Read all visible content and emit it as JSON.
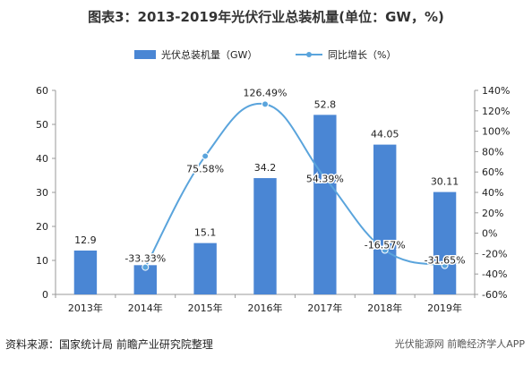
{
  "title": "图表3：2013-2019年光伏行业总装机量(单位：GW，%)",
  "footer": {
    "source": "资料来源：国家统计局 前瞻产业研究院整理",
    "watermark": "光伏能源网 前瞻经济学人APP"
  },
  "colors": {
    "bar": "#4a86d4",
    "line": "#5aa4dc",
    "axis": "#999999",
    "text": "#222222"
  },
  "chart_data": {
    "type": "bar+line",
    "categories": [
      "2013年",
      "2014年",
      "2015年",
      "2016年",
      "2017年",
      "2018年",
      "2019年"
    ],
    "series": [
      {
        "name": "光伏总装机量（GW）",
        "type": "bar",
        "axis": "left",
        "values": [
          12.9,
          8.6,
          15.1,
          34.2,
          52.8,
          44.05,
          30.11
        ],
        "labels": [
          "12.9",
          "",
          "15.1",
          "34.2",
          "52.8",
          "44.05",
          "30.11"
        ]
      },
      {
        "name": "同比增长（%）",
        "type": "line",
        "axis": "right",
        "values": [
          null,
          -33.33,
          75.58,
          126.49,
          54.39,
          -16.57,
          -31.65
        ],
        "labels": [
          "",
          "-33.33%",
          "75.58%",
          "126.49%",
          "54.39%",
          "-16.57%",
          "-31.65%"
        ]
      }
    ],
    "left_axis": {
      "min": 0,
      "max": 60,
      "ticks": [
        "0",
        "10",
        "20",
        "30",
        "40",
        "50",
        "60"
      ]
    },
    "right_axis": {
      "min": -60,
      "max": 140,
      "ticks": [
        "-60%",
        "-40%",
        "-20%",
        "0%",
        "20%",
        "40%",
        "60%",
        "80%",
        "100%",
        "120%",
        "140%"
      ]
    },
    "legend_position": "top-center"
  }
}
